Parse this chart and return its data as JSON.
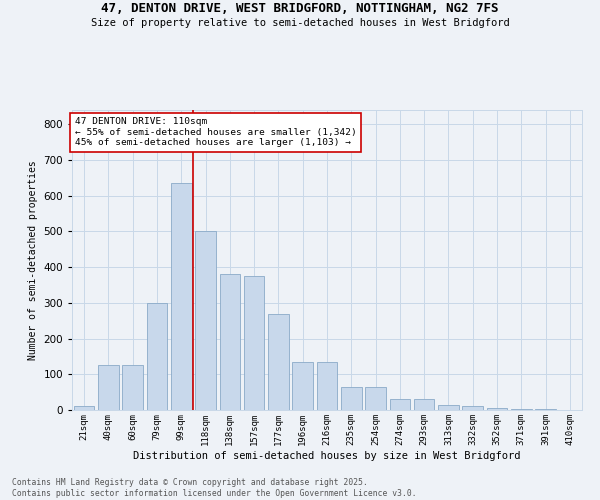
{
  "title_line1": "47, DENTON DRIVE, WEST BRIDGFORD, NOTTINGHAM, NG2 7FS",
  "title_line2": "Size of property relative to semi-detached houses in West Bridgford",
  "xlabel": "Distribution of semi-detached houses by size in West Bridgford",
  "ylabel": "Number of semi-detached properties",
  "footer_line1": "Contains HM Land Registry data © Crown copyright and database right 2025.",
  "footer_line2": "Contains public sector information licensed under the Open Government Licence v3.0.",
  "annotation_title": "47 DENTON DRIVE: 110sqm",
  "annotation_line1": "← 55% of semi-detached houses are smaller (1,342)",
  "annotation_line2": "45% of semi-detached houses are larger (1,103) →",
  "bar_color": "#c8d8eb",
  "bar_edge_color": "#8aaac8",
  "vline_color": "#cc0000",
  "annotation_box_facecolor": "#ffffff",
  "annotation_box_edgecolor": "#cc0000",
  "grid_color": "#c8d8e8",
  "background_color": "#eef2f7",
  "title_color": "#000000",
  "footer_color": "#555555",
  "categories": [
    "21sqm",
    "40sqm",
    "60sqm",
    "79sqm",
    "99sqm",
    "118sqm",
    "138sqm",
    "157sqm",
    "177sqm",
    "196sqm",
    "216sqm",
    "235sqm",
    "254sqm",
    "274sqm",
    "293sqm",
    "313sqm",
    "332sqm",
    "352sqm",
    "371sqm",
    "391sqm",
    "410sqm"
  ],
  "values": [
    10,
    125,
    125,
    300,
    635,
    500,
    380,
    375,
    270,
    135,
    135,
    65,
    65,
    30,
    30,
    15,
    10,
    5,
    3,
    2,
    1
  ],
  "vline_x": 4.5,
  "ylim": [
    0,
    840
  ],
  "yticks": [
    0,
    100,
    200,
    300,
    400,
    500,
    600,
    700,
    800
  ],
  "figsize": [
    6.0,
    5.0
  ],
  "dpi": 100
}
